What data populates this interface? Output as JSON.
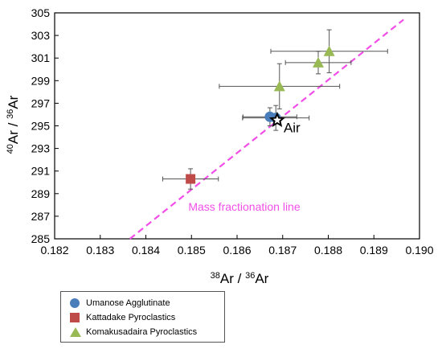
{
  "chart_data": {
    "type": "scatter",
    "xlabel": {
      "pre": "",
      "sup1": "38",
      "t1": "Ar / ",
      "sup2": "36",
      "t2": "Ar"
    },
    "ylabel": {
      "sup1": "40",
      "t1": "Ar / ",
      "sup2": "36",
      "t2": "Ar"
    },
    "xlim": [
      0.182,
      0.19
    ],
    "ylim": [
      285,
      305
    ],
    "xticks": [
      "0.182",
      "0.183",
      "0.184",
      "0.185",
      "0.186",
      "0.187",
      "0.188",
      "0.189",
      "0.190"
    ],
    "yticks": [
      "285",
      "287",
      "289",
      "291",
      "293",
      "295",
      "297",
      "299",
      "301",
      "303",
      "305"
    ],
    "grid": false,
    "series": [
      {
        "name": "Umanose Agglutinate",
        "marker": "circle",
        "color": "#4a7ebb",
        "points": [
          {
            "x": 0.18672,
            "y": 295.8,
            "xerr": 0.00059,
            "yerr": 0.8
          },
          {
            "x": 0.18685,
            "y": 295.7,
            "xerr": 0.00073,
            "yerr": 1.1
          }
        ]
      },
      {
        "name": "Kattadake Pyroclastics",
        "marker": "square",
        "color": "#be4b48",
        "points": [
          {
            "x": 0.18498,
            "y": 290.3,
            "xerr": 0.00061,
            "yerr": 0.9
          }
        ]
      },
      {
        "name": "Komakusadaira Pyroclastics",
        "marker": "triangle",
        "color": "#98b954",
        "points": [
          {
            "x": 0.18693,
            "y": 298.5,
            "xerr": 0.00132,
            "yerr": 2.0
          },
          {
            "x": 0.18778,
            "y": 300.6,
            "xerr": 0.00072,
            "yerr": 1.0
          },
          {
            "x": 0.18802,
            "y": 301.6,
            "xerr": 0.00128,
            "yerr": 1.9
          }
        ]
      }
    ],
    "air_point": {
      "label": "Air",
      "x": 0.18688,
      "y": 295.5
    },
    "reference_line": {
      "label": "Mass fractionation line",
      "color": "#f24fe8",
      "x": [
        0.18365,
        0.18965
      ],
      "y": [
        285,
        304.4
      ]
    },
    "legend_position": "below"
  },
  "legend": {
    "items": [
      {
        "label": "Umanose Agglutinate"
      },
      {
        "label": "Kattadake Pyroclastics"
      },
      {
        "label": "Komakusadaira Pyroclastics"
      }
    ]
  }
}
